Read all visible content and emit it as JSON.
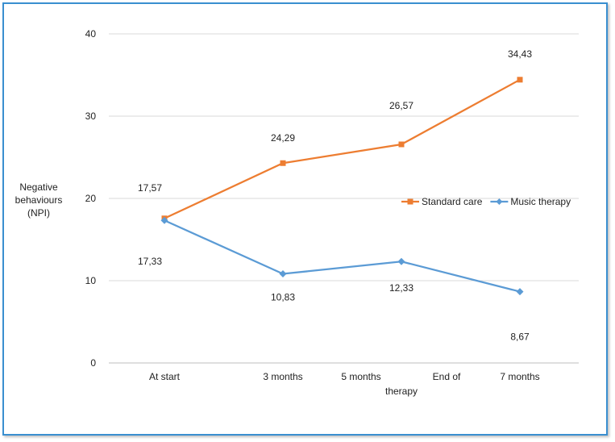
{
  "chart_data": {
    "type": "line",
    "ylabel_lines": [
      "Negative",
      "behaviours",
      "(NPI)"
    ],
    "ylim": [
      0,
      40
    ],
    "yticks": [
      0,
      10,
      20,
      30,
      40
    ],
    "xtick_labels": [
      {
        "lines": [
          "At start"
        ]
      },
      {
        "lines": [
          "3 months"
        ]
      },
      {
        "lines": [
          "5 months"
        ]
      },
      {
        "lines": [
          "End of",
          "therapy"
        ]
      },
      {
        "lines": [
          "7 months"
        ]
      }
    ],
    "x": [
      "At start",
      "3 months",
      "End of therapy",
      "7 months"
    ],
    "grid": true,
    "legend": "right",
    "series": [
      {
        "name": "Standard care",
        "color": "#ed7d31",
        "marker": "square",
        "values": [
          17.57,
          24.29,
          26.57,
          34.43
        ],
        "labels": [
          "17,57",
          "24,29",
          "26,57",
          "34,43"
        ]
      },
      {
        "name": "Music therapy",
        "color": "#5b9bd5",
        "marker": "diamond",
        "values": [
          17.33,
          10.83,
          12.33,
          8.67
        ],
        "labels": [
          "17,33",
          "10,83",
          "12,33",
          "8,67"
        ]
      }
    ]
  }
}
